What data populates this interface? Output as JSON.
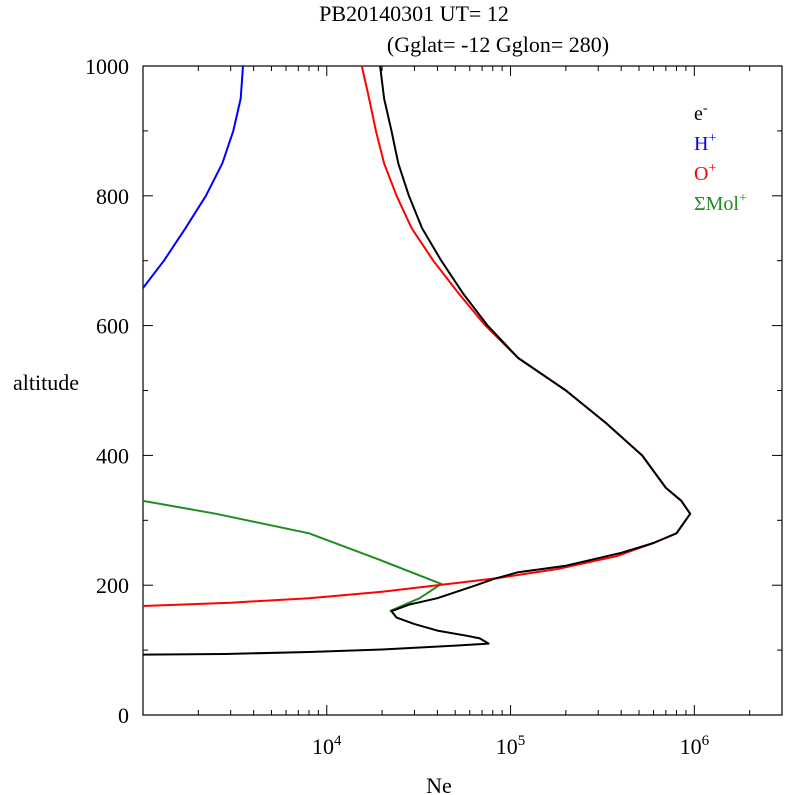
{
  "chart_data": {
    "type": "line",
    "title": "PB20140301   UT=  12",
    "subtitle": "(Gglat= -12   Gglon=  280)",
    "xlabel": "Ne",
    "ylabel": "altitude",
    "xscale": "log",
    "xlim": [
      1000,
      3000000
    ],
    "ylim": [
      0,
      1000
    ],
    "x_ticks": [
      {
        "value": 10000,
        "base": "10",
        "exp": "4"
      },
      {
        "value": 100000,
        "base": "10",
        "exp": "5"
      },
      {
        "value": 1000000,
        "base": "10",
        "exp": "6"
      }
    ],
    "y_ticks": [
      0,
      200,
      400,
      600,
      800,
      1000
    ],
    "y_tick_labels": [
      "0",
      "200",
      "400",
      "600",
      "800",
      "1000"
    ],
    "legend_position": "top-right",
    "series": [
      {
        "name": "e-",
        "label_base": "e",
        "label_sup": "-",
        "color": "#000000",
        "points": [
          [
            1000,
            93
          ],
          [
            2800,
            94
          ],
          [
            8000,
            97
          ],
          [
            20000,
            101
          ],
          [
            50000,
            107
          ],
          [
            76000,
            110
          ],
          [
            68000,
            118
          ],
          [
            58000,
            122
          ],
          [
            40000,
            130
          ],
          [
            30000,
            140
          ],
          [
            24000,
            150
          ],
          [
            22500,
            160
          ],
          [
            28000,
            170
          ],
          [
            40000,
            180
          ],
          [
            65000,
            200
          ],
          [
            82000,
            210
          ],
          [
            110000,
            220
          ],
          [
            200000,
            230
          ],
          [
            400000,
            250
          ],
          [
            600000,
            265
          ],
          [
            800000,
            280
          ],
          [
            950000,
            310
          ],
          [
            850000,
            330
          ],
          [
            700000,
            350
          ],
          [
            520000,
            400
          ],
          [
            330000,
            450
          ],
          [
            200000,
            500
          ],
          [
            110000,
            550
          ],
          [
            75000,
            600
          ],
          [
            55000,
            650
          ],
          [
            42000,
            700
          ],
          [
            33000,
            750
          ],
          [
            28000,
            800
          ],
          [
            24500,
            850
          ],
          [
            22500,
            900
          ],
          [
            20500,
            950
          ],
          [
            19500,
            1000
          ]
        ]
      },
      {
        "name": "H+",
        "label_base": "H",
        "label_sup": "+",
        "color": "#0000ff",
        "points": [
          [
            1000,
            658
          ],
          [
            1300,
            700
          ],
          [
            1700,
            750
          ],
          [
            2200,
            800
          ],
          [
            2700,
            850
          ],
          [
            3100,
            900
          ],
          [
            3400,
            950
          ],
          [
            3500,
            1000
          ]
        ]
      },
      {
        "name": "O+",
        "label_base": "O",
        "label_sup": "+",
        "color": "#ff0000",
        "points": [
          [
            1000,
            168
          ],
          [
            3000,
            173
          ],
          [
            8000,
            180
          ],
          [
            20000,
            190
          ],
          [
            40000,
            200
          ],
          [
            85000,
            211
          ],
          [
            180000,
            225
          ],
          [
            380000,
            245
          ],
          [
            600000,
            265
          ],
          [
            800000,
            280
          ],
          [
            950000,
            310
          ],
          [
            850000,
            330
          ],
          [
            700000,
            350
          ],
          [
            520000,
            400
          ],
          [
            330000,
            450
          ],
          [
            200000,
            500
          ],
          [
            110000,
            550
          ],
          [
            73000,
            600
          ],
          [
            52000,
            650
          ],
          [
            38000,
            700
          ],
          [
            29000,
            750
          ],
          [
            24000,
            800
          ],
          [
            20500,
            850
          ],
          [
            18500,
            900
          ],
          [
            17000,
            950
          ],
          [
            15500,
            1000
          ]
        ]
      },
      {
        "name": "ΣMol+",
        "label_base": "ΣMol",
        "label_sup": "+",
        "color": "#228b22",
        "points": [
          [
            1000,
            330
          ],
          [
            2500,
            310
          ],
          [
            8000,
            280
          ],
          [
            19000,
            240
          ],
          [
            42000,
            202
          ],
          [
            32000,
            180
          ],
          [
            22000,
            160
          ]
        ]
      }
    ]
  }
}
